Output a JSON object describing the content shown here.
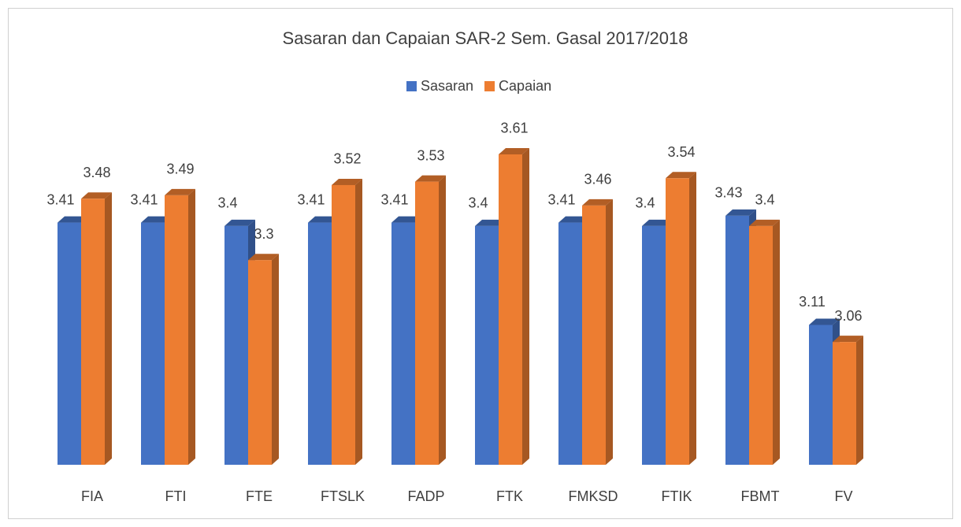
{
  "chart_data": {
    "type": "bar3d",
    "title": "Sasaran dan Capaian SAR-2 Sem. Gasal 2017/2018",
    "categories": [
      "FIA",
      "FTI",
      "FTE",
      "FTSLK",
      "FADP",
      "FTK",
      "FMKSD",
      "FTIK",
      "FBMT",
      "FV"
    ],
    "series": [
      {
        "name": "Sasaran",
        "color": "#4472c4",
        "values": [
          3.41,
          3.41,
          3.4,
          3.41,
          3.41,
          3.4,
          3.41,
          3.4,
          3.43,
          3.11
        ]
      },
      {
        "name": "Capaian",
        "color": "#ed7d31",
        "values": [
          3.48,
          3.49,
          3.3,
          3.52,
          3.53,
          3.61,
          3.46,
          3.54,
          3.4,
          3.06
        ]
      }
    ],
    "ylim": [
      2.7,
      3.7
    ]
  }
}
